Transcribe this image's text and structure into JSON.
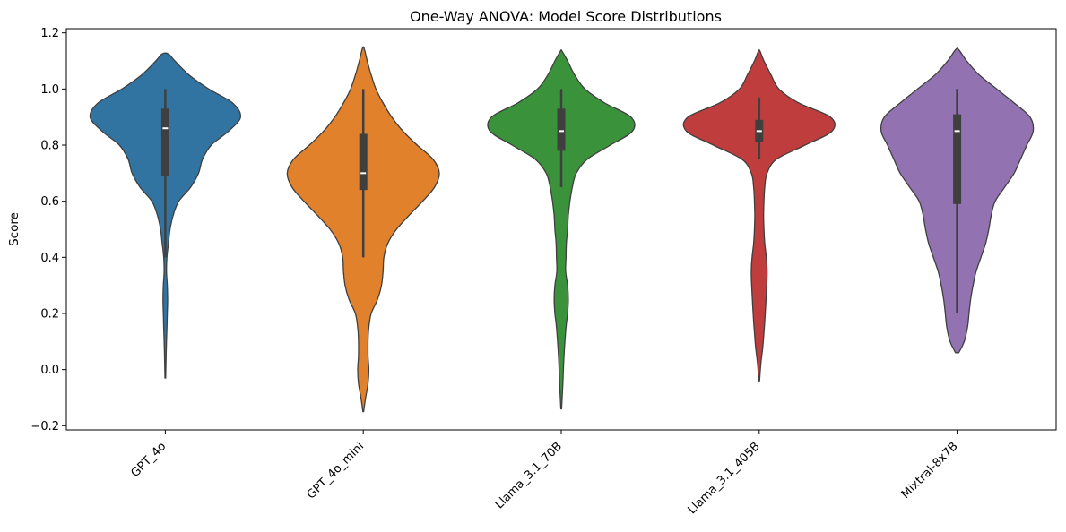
{
  "chart_data": {
    "type": "violin",
    "title": "One-Way ANOVA: Model Score Distributions",
    "xlabel": "",
    "ylabel": "Score",
    "ylim": [
      -0.215,
      1.215
    ],
    "yticks": [
      -0.2,
      0.0,
      0.2,
      0.4,
      0.6,
      0.8,
      1.0,
      1.2
    ],
    "ytick_labels": [
      "−0.2",
      "0.0",
      "0.2",
      "0.4",
      "0.6",
      "0.8",
      "1.0",
      "1.2"
    ],
    "grid": false,
    "categories": [
      "GPT_4o",
      "GPT_4o_mini",
      "Llama_3.1_70B",
      "Llama_3.1_405B",
      "Mixtral-8x7B"
    ],
    "series": [
      {
        "category": "GPT_4o",
        "color": "#3274a1",
        "median": 0.86,
        "q1": 0.69,
        "q3": 0.93,
        "whisker_low": 0.4,
        "whisker_high": 1.0,
        "density": [
          [
            -0.03,
            0.005
          ],
          [
            0.05,
            0.01
          ],
          [
            0.1,
            0.015
          ],
          [
            0.15,
            0.02
          ],
          [
            0.2,
            0.025
          ],
          [
            0.25,
            0.03
          ],
          [
            0.3,
            0.025
          ],
          [
            0.35,
            0.015
          ],
          [
            0.4,
            0.02
          ],
          [
            0.45,
            0.04
          ],
          [
            0.5,
            0.06
          ],
          [
            0.55,
            0.1
          ],
          [
            0.6,
            0.17
          ],
          [
            0.65,
            0.32
          ],
          [
            0.7,
            0.42
          ],
          [
            0.75,
            0.47
          ],
          [
            0.8,
            0.58
          ],
          [
            0.85,
            0.8
          ],
          [
            0.9,
            0.95
          ],
          [
            0.95,
            0.85
          ],
          [
            1.0,
            0.55
          ],
          [
            1.05,
            0.3
          ],
          [
            1.1,
            0.12
          ],
          [
            1.125,
            0.04
          ]
        ]
      },
      {
        "category": "GPT_4o_mini",
        "color": "#e1812c",
        "median": 0.7,
        "q1": 0.64,
        "q3": 0.84,
        "whisker_low": 0.4,
        "whisker_high": 1.0,
        "density": [
          [
            -0.15,
            0.005
          ],
          [
            -0.1,
            0.03
          ],
          [
            -0.05,
            0.06
          ],
          [
            0.0,
            0.07
          ],
          [
            0.05,
            0.06
          ],
          [
            0.1,
            0.06
          ],
          [
            0.15,
            0.07
          ],
          [
            0.2,
            0.1
          ],
          [
            0.25,
            0.18
          ],
          [
            0.3,
            0.23
          ],
          [
            0.35,
            0.25
          ],
          [
            0.4,
            0.26
          ],
          [
            0.45,
            0.31
          ],
          [
            0.5,
            0.42
          ],
          [
            0.55,
            0.58
          ],
          [
            0.6,
            0.75
          ],
          [
            0.65,
            0.9
          ],
          [
            0.7,
            0.96
          ],
          [
            0.75,
            0.88
          ],
          [
            0.8,
            0.68
          ],
          [
            0.85,
            0.5
          ],
          [
            0.9,
            0.36
          ],
          [
            0.95,
            0.25
          ],
          [
            1.0,
            0.16
          ],
          [
            1.05,
            0.1
          ],
          [
            1.1,
            0.05
          ],
          [
            1.145,
            0.01
          ]
        ]
      },
      {
        "category": "Llama_3.1_70B",
        "color": "#3a923a",
        "median": 0.85,
        "q1": 0.78,
        "q3": 0.93,
        "whisker_low": 0.65,
        "whisker_high": 1.0,
        "density": [
          [
            -0.14,
            0.005
          ],
          [
            -0.05,
            0.02
          ],
          [
            0.05,
            0.035
          ],
          [
            0.15,
            0.06
          ],
          [
            0.2,
            0.08
          ],
          [
            0.25,
            0.09
          ],
          [
            0.3,
            0.08
          ],
          [
            0.35,
            0.055
          ],
          [
            0.4,
            0.06
          ],
          [
            0.45,
            0.065
          ],
          [
            0.5,
            0.08
          ],
          [
            0.55,
            0.09
          ],
          [
            0.6,
            0.11
          ],
          [
            0.65,
            0.14
          ],
          [
            0.7,
            0.19
          ],
          [
            0.75,
            0.33
          ],
          [
            0.8,
            0.62
          ],
          [
            0.85,
            0.9
          ],
          [
            0.9,
            0.88
          ],
          [
            0.95,
            0.55
          ],
          [
            1.0,
            0.3
          ],
          [
            1.05,
            0.17
          ],
          [
            1.1,
            0.08
          ],
          [
            1.135,
            0.01
          ]
        ]
      },
      {
        "category": "Llama_3.1_405B",
        "color": "#c03d3e",
        "median": 0.85,
        "q1": 0.81,
        "q3": 0.89,
        "whisker_low": 0.75,
        "whisker_high": 0.97,
        "density": [
          [
            -0.04,
            0.005
          ],
          [
            0.02,
            0.02
          ],
          [
            0.08,
            0.045
          ],
          [
            0.15,
            0.065
          ],
          [
            0.22,
            0.08
          ],
          [
            0.3,
            0.095
          ],
          [
            0.35,
            0.1
          ],
          [
            0.4,
            0.09
          ],
          [
            0.45,
            0.07
          ],
          [
            0.5,
            0.06
          ],
          [
            0.55,
            0.055
          ],
          [
            0.6,
            0.06
          ],
          [
            0.65,
            0.07
          ],
          [
            0.7,
            0.1
          ],
          [
            0.75,
            0.22
          ],
          [
            0.8,
            0.58
          ],
          [
            0.85,
            0.92
          ],
          [
            0.9,
            0.9
          ],
          [
            0.95,
            0.5
          ],
          [
            1.0,
            0.25
          ],
          [
            1.05,
            0.15
          ],
          [
            1.1,
            0.06
          ],
          [
            1.135,
            0.01
          ]
        ]
      },
      {
        "category": "Mixtral-8x7B",
        "color": "#9372b2",
        "median": 0.85,
        "q1": 0.59,
        "q3": 0.91,
        "whisker_low": 0.2,
        "whisker_high": 1.0,
        "density": [
          [
            0.06,
            0.02
          ],
          [
            0.1,
            0.09
          ],
          [
            0.15,
            0.13
          ],
          [
            0.2,
            0.15
          ],
          [
            0.25,
            0.17
          ],
          [
            0.3,
            0.2
          ],
          [
            0.35,
            0.24
          ],
          [
            0.4,
            0.3
          ],
          [
            0.45,
            0.36
          ],
          [
            0.5,
            0.4
          ],
          [
            0.55,
            0.43
          ],
          [
            0.6,
            0.48
          ],
          [
            0.65,
            0.6
          ],
          [
            0.7,
            0.72
          ],
          [
            0.75,
            0.8
          ],
          [
            0.8,
            0.88
          ],
          [
            0.85,
            0.96
          ],
          [
            0.9,
            0.92
          ],
          [
            0.95,
            0.72
          ],
          [
            1.0,
            0.5
          ],
          [
            1.05,
            0.28
          ],
          [
            1.1,
            0.12
          ],
          [
            1.14,
            0.02
          ]
        ]
      }
    ]
  }
}
